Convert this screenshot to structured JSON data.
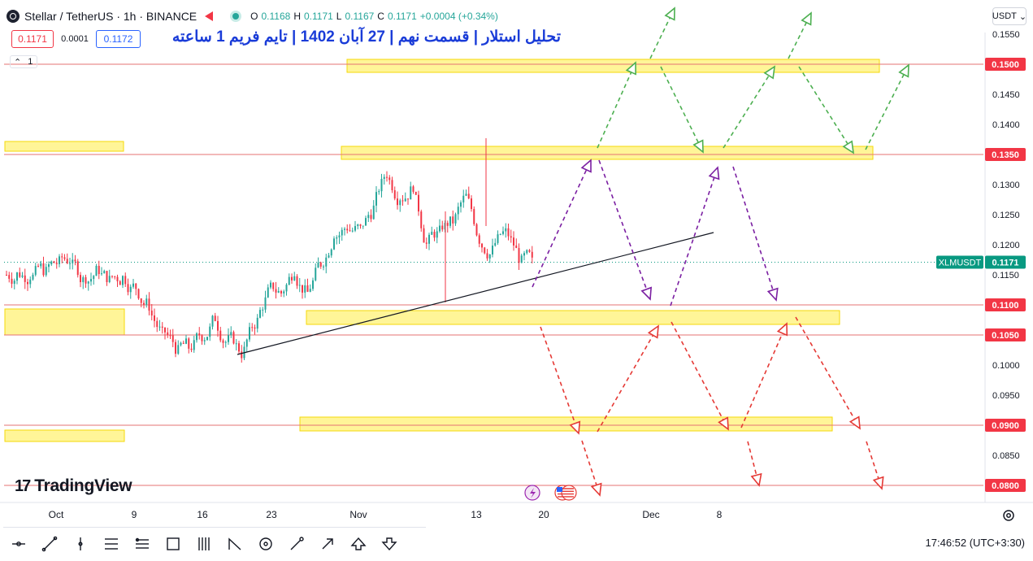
{
  "header": {
    "symbol": "Stellar / TetherUS · 1h · BINANCE",
    "ohlc": {
      "o_label": "O",
      "o": "0.1168",
      "h_label": "H",
      "h": "0.1171",
      "l_label": "L",
      "l": "0.1167",
      "c_label": "C",
      "c": "0.1171",
      "change": "+0.0004 (+0.34%)"
    },
    "sell_price": "0.1171",
    "spread": "0.0001",
    "buy_price": "0.1172",
    "layers_count": "1",
    "currency": "USDT"
  },
  "title": "تحلیل استلار | قسمت نهم | 27 آبان 1402 | تایم فریم 1 ساعته",
  "branding": {
    "logo_text": "TradingView",
    "logo_mark": "17"
  },
  "footer": {
    "clock": "17:46:52 (UTC+3:30)"
  },
  "colors": {
    "up": "#26a69a",
    "down": "#f23645",
    "zone": "#fff176",
    "level_line": "#e57373",
    "green_arrow": "#4caf50",
    "purple_arrow": "#7b1fa2",
    "red_arrow": "#e53935",
    "ticker_tag": "#089981"
  },
  "toolbar_icons": [
    "cursor-line-icon",
    "trend-line-icon",
    "vertical-line-icon",
    "parallel-channel-icon",
    "fib-icon",
    "rectangle-icon",
    "long-short-icon",
    "pattern-icon",
    "circle-icon",
    "brush-icon",
    "arrow-icon",
    "arrow-up-icon",
    "arrow-down-icon"
  ],
  "chart_data": {
    "type": "candlestick",
    "symbol_tag": "XLMUSDT",
    "last_price": 0.1171,
    "y_axis": {
      "ticks": [
        "0.1550",
        "0.1500",
        "0.1450",
        "0.1400",
        "0.1350",
        "0.1300",
        "0.1250",
        "0.1200",
        "0.1150",
        "0.1100",
        "0.1050",
        "0.1000",
        "0.0950",
        "0.0900",
        "0.0850",
        "0.0800"
      ],
      "ylim": [
        0.077,
        0.158
      ]
    },
    "x_axis": {
      "ticks": [
        "Oct",
        "9",
        "16",
        "23",
        "Nov",
        "13",
        "20",
        "Dec",
        "8"
      ]
    },
    "key_levels": [
      {
        "price": 0.15,
        "label": "0.1500"
      },
      {
        "price": 0.135,
        "label": "0.1350"
      },
      {
        "price": 0.11,
        "label": "0.1100"
      },
      {
        "price": 0.105,
        "label": "0.1050"
      },
      {
        "price": 0.09,
        "label": "0.0900"
      },
      {
        "price": 0.08,
        "label": "0.0800"
      }
    ],
    "price_path": [
      [
        0.115,
        0.115
      ],
      [
        0.116,
        0.115
      ],
      [
        0.117,
        0.116
      ],
      [
        0.119,
        0.117
      ],
      [
        0.1165,
        0.1175
      ],
      [
        0.1155,
        0.114
      ],
      [
        0.116,
        0.1155
      ],
      [
        0.115,
        0.114
      ],
      [
        0.114,
        0.1145
      ],
      [
        0.112,
        0.113
      ],
      [
        0.1085,
        0.11
      ],
      [
        0.106,
        0.105
      ],
      [
        0.104,
        0.103
      ],
      [
        0.102,
        0.103
      ],
      [
        0.104,
        0.105
      ],
      [
        0.109,
        0.108
      ],
      [
        0.106,
        0.104
      ],
      [
        0.103,
        0.102
      ],
      [
        0.108,
        0.107
      ],
      [
        0.113,
        0.112
      ],
      [
        0.115,
        0.112
      ],
      [
        0.119,
        0.116
      ],
      [
        0.114,
        0.112
      ],
      [
        0.116,
        0.117
      ],
      [
        0.12,
        0.122
      ],
      [
        0.124,
        0.123
      ],
      [
        0.121,
        0.1225
      ],
      [
        0.125,
        0.126
      ],
      [
        0.13,
        0.132
      ],
      [
        0.134,
        0.128
      ],
      [
        0.129,
        0.13
      ],
      [
        0.125,
        0.12
      ],
      [
        0.115,
        0.122
      ],
      [
        0.126,
        0.124
      ],
      [
        0.123,
        0.128
      ],
      [
        0.125,
        0.121
      ],
      [
        0.12,
        0.119
      ],
      [
        0.117,
        0.122
      ],
      [
        0.123,
        0.118
      ],
      [
        0.116,
        0.117
      ]
    ]
  }
}
